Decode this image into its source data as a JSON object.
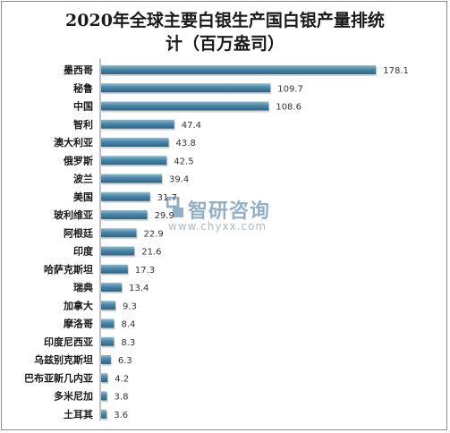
{
  "chart_data": {
    "type": "bar",
    "orientation": "horizontal",
    "title_lines": [
      "2020年全球主要白银生产国白银产量排统",
      "计（百万盎司）"
    ],
    "categories": [
      "墨西哥",
      "秘鲁",
      "中国",
      "智利",
      "澳大利亚",
      "俄罗斯",
      "波兰",
      "美国",
      "玻利维亚",
      "阿根廷",
      "印度",
      "哈萨克斯坦",
      "瑞典",
      "加拿大",
      "摩洛哥",
      "印度尼西亚",
      "乌兹别克斯坦",
      "巴布亚新几内亚",
      "多米尼加",
      "土耳其"
    ],
    "values": [
      178.1,
      109.7,
      108.6,
      47.4,
      43.8,
      42.5,
      39.4,
      31.7,
      29.9,
      22.9,
      21.6,
      17.3,
      13.4,
      9.3,
      8.4,
      8.3,
      6.3,
      4.2,
      3.8,
      3.6
    ],
    "value_labels": [
      "178.1",
      "109.7",
      "108.6",
      "47.4",
      "43.8",
      "42.5",
      "39.4",
      "31.7",
      "29.9",
      "22.9",
      "21.6",
      "17.3",
      "13.4",
      "9.3",
      "8.4",
      "8.3",
      "6.3",
      "4.2",
      "3.8",
      "3.6"
    ],
    "xlim": [
      0,
      200
    ],
    "grid": false,
    "bar_color": "#4a86a8",
    "bar_color_light": "#8fbbd2",
    "bar_color_dark": "#2f6483"
  },
  "watermark": {
    "name": "智研咨询",
    "url": "www.chyxx.com"
  }
}
